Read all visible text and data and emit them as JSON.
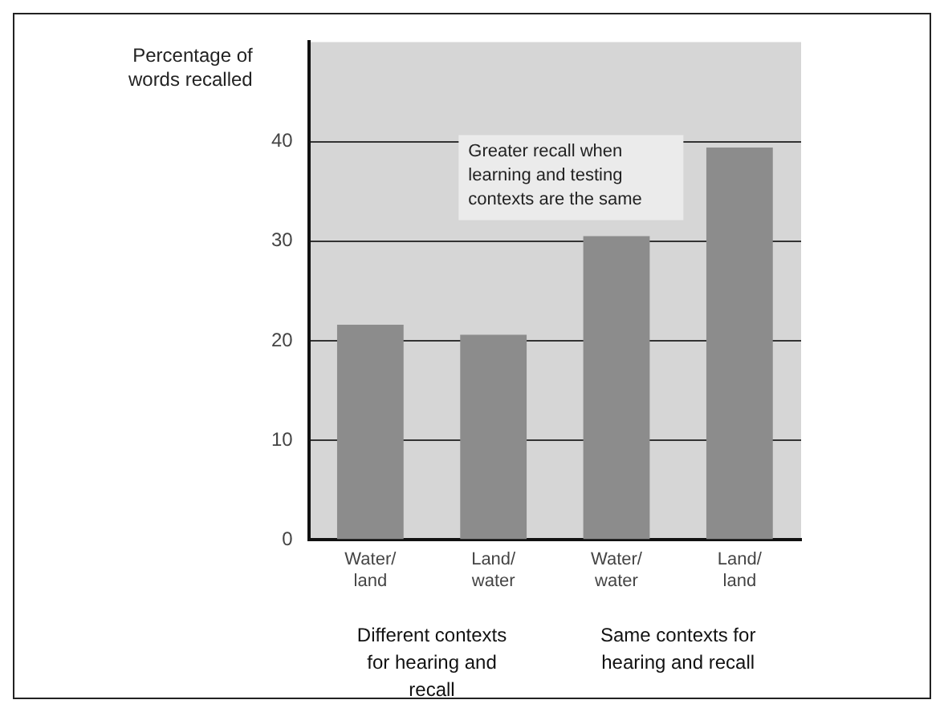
{
  "chart_data": {
    "type": "bar",
    "ylabel": "Percentage of words recalled",
    "categories": [
      "Water/land",
      "Land/water",
      "Water/water",
      "Land/land"
    ],
    "values": [
      21.6,
      20.6,
      30.5,
      39.4
    ],
    "color": "#8c8c8c",
    "ylim": [
      0,
      50
    ],
    "yticks": [
      0,
      10,
      20,
      30,
      40
    ],
    "grid": "y",
    "legend": false,
    "annotations": [
      "Greater recall when learning and testing contexts are the same",
      "Different contexts for hearing and recall",
      "Same contexts for hearing and recall"
    ]
  }
}
